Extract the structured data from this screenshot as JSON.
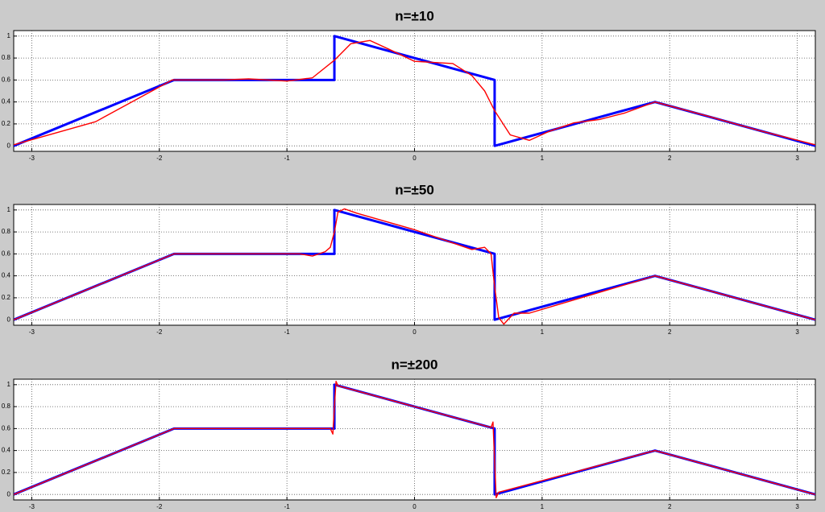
{
  "chart_data": [
    {
      "type": "line",
      "title": "n=±10",
      "xlim": [
        -3.1416,
        3.1416
      ],
      "xticks": [
        -3,
        -2,
        -1,
        0,
        1,
        2,
        3
      ],
      "ylim": [
        -0.05,
        1.05
      ],
      "yticks": [
        0,
        0.2,
        0.4,
        0.6,
        0.8,
        1
      ],
      "grid": true,
      "series": [
        {
          "color": "#0000ff",
          "x": [
            -3.1416,
            -1.885,
            -0.628,
            -0.628,
            0.628,
            0.628,
            1.885,
            3.1416
          ],
          "values": [
            0,
            0.6,
            0.6,
            1,
            0.6,
            0,
            0.4,
            0
          ]
        },
        {
          "color": "#ff0000",
          "x": [
            -3.14,
            -2.5,
            -1.9,
            -1.5,
            -1.3,
            -1.0,
            -0.8,
            -0.628,
            -0.5,
            -0.35,
            -0.2,
            0,
            0.15,
            0.3,
            0.45,
            0.55,
            0.628,
            0.75,
            0.9,
            1.05,
            1.25,
            1.45,
            1.65,
            1.885,
            2.3,
            2.7,
            3.14
          ],
          "values": [
            0.01,
            0.22,
            0.6,
            0.6,
            0.61,
            0.59,
            0.62,
            0.78,
            0.93,
            0.96,
            0.88,
            0.77,
            0.76,
            0.75,
            0.64,
            0.5,
            0.32,
            0.1,
            0.05,
            0.13,
            0.21,
            0.24,
            0.3,
            0.4,
            0.27,
            0.14,
            0.01
          ]
        }
      ]
    },
    {
      "type": "line",
      "title": "n=±50",
      "xlim": [
        -3.1416,
        3.1416
      ],
      "xticks": [
        -3,
        -2,
        -1,
        0,
        1,
        2,
        3
      ],
      "ylim": [
        -0.05,
        1.05
      ],
      "yticks": [
        0,
        0.2,
        0.4,
        0.6,
        0.8,
        1
      ],
      "grid": true,
      "series": [
        {
          "color": "#0000ff",
          "x": [
            -3.1416,
            -1.885,
            -0.628,
            -0.628,
            0.628,
            0.628,
            1.885,
            3.1416
          ],
          "values": [
            0,
            0.6,
            0.6,
            1,
            0.6,
            0,
            0.4,
            0
          ]
        },
        {
          "color": "#ff0000",
          "x": [
            -3.14,
            -1.885,
            -0.9,
            -0.8,
            -0.7,
            -0.66,
            -0.628,
            -0.6,
            -0.55,
            -0.45,
            0,
            0.45,
            0.55,
            0.6,
            0.628,
            0.66,
            0.7,
            0.78,
            0.9,
            1.885,
            3.14
          ],
          "values": [
            0,
            0.6,
            0.6,
            0.58,
            0.62,
            0.66,
            0.8,
            0.98,
            1.01,
            0.97,
            0.82,
            0.64,
            0.66,
            0.6,
            0.3,
            0.02,
            -0.04,
            0.06,
            0.06,
            0.4,
            0
          ]
        }
      ]
    },
    {
      "type": "line",
      "title": "n=±200",
      "xlim": [
        -3.1416,
        3.1416
      ],
      "xticks": [
        -3,
        -2,
        -1,
        0,
        1,
        2,
        3
      ],
      "ylim": [
        -0.05,
        1.05
      ],
      "yticks": [
        0,
        0.2,
        0.4,
        0.6,
        0.8,
        1
      ],
      "grid": true,
      "series": [
        {
          "color": "#0000ff",
          "x": [
            -3.1416,
            -1.885,
            -0.628,
            -0.628,
            0.628,
            0.628,
            1.885,
            3.1416
          ],
          "values": [
            0,
            0.6,
            0.6,
            1,
            0.6,
            0,
            0.4,
            0
          ]
        },
        {
          "color": "#ff0000",
          "x": [
            -3.14,
            -1.885,
            -0.66,
            -0.64,
            -0.628,
            -0.615,
            -0.6,
            0.6,
            0.615,
            0.628,
            0.64,
            0.66,
            1.885,
            3.14
          ],
          "values": [
            0,
            0.6,
            0.6,
            0.55,
            0.8,
            1.03,
            0.99,
            0.61,
            0.66,
            0.3,
            -0.03,
            0.02,
            0.4,
            0
          ]
        }
      ]
    }
  ]
}
